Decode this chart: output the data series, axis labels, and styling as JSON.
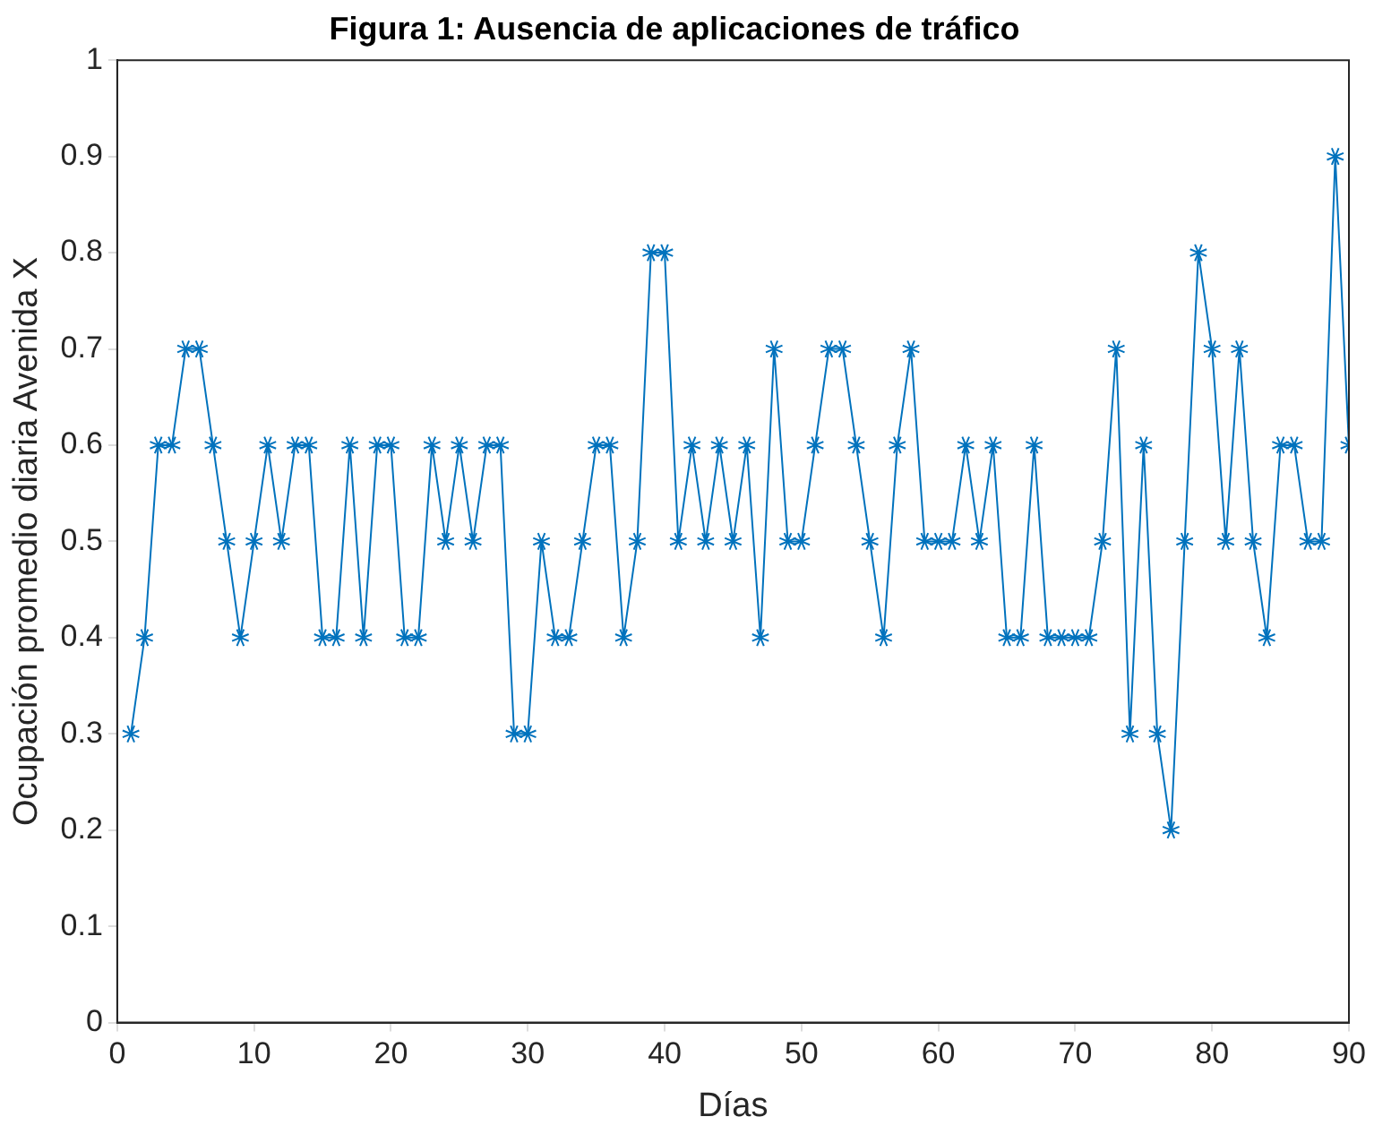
{
  "chart_data": {
    "type": "line",
    "title": "Figura 1: Ausencia de aplicaciones de tráfico",
    "xlabel": "Días",
    "ylabel": "Ocupación promedio diaria Avenida X",
    "x": [
      1,
      2,
      3,
      4,
      5,
      6,
      7,
      8,
      9,
      10,
      11,
      12,
      13,
      14,
      15,
      16,
      17,
      18,
      19,
      20,
      21,
      22,
      23,
      24,
      25,
      26,
      27,
      28,
      29,
      30,
      31,
      32,
      33,
      34,
      35,
      36,
      37,
      38,
      39,
      40,
      41,
      42,
      43,
      44,
      45,
      46,
      47,
      48,
      49,
      50,
      51,
      52,
      53,
      54,
      55,
      56,
      57,
      58,
      59,
      60,
      61,
      62,
      63,
      64,
      65,
      66,
      67,
      68,
      69,
      70,
      71,
      72,
      73,
      74,
      75,
      76,
      77,
      78,
      79,
      80,
      81,
      82,
      83,
      84,
      85,
      86,
      87,
      88,
      89,
      90
    ],
    "series": [
      {
        "color": "#0072bd",
        "values": [
          0.3,
          0.4,
          0.6,
          0.6,
          0.7,
          0.7,
          0.6,
          0.5,
          0.4,
          0.5,
          0.6,
          0.5,
          0.6,
          0.6,
          0.4,
          0.4,
          0.6,
          0.4,
          0.6,
          0.6,
          0.4,
          0.4,
          0.6,
          0.5,
          0.6,
          0.5,
          0.6,
          0.6,
          0.3,
          0.3,
          0.5,
          0.4,
          0.4,
          0.5,
          0.6,
          0.6,
          0.4,
          0.5,
          0.8,
          0.8,
          0.5,
          0.6,
          0.5,
          0.6,
          0.5,
          0.6,
          0.4,
          0.7,
          0.5,
          0.5,
          0.6,
          0.7,
          0.7,
          0.6,
          0.5,
          0.4,
          0.6,
          0.7,
          0.5,
          0.5,
          0.5,
          0.6,
          0.5,
          0.6,
          0.4,
          0.4,
          0.6,
          0.4,
          0.4,
          0.4,
          0.4,
          0.5,
          0.7,
          0.3,
          0.6,
          0.3,
          0.2,
          0.5,
          0.8,
          0.7,
          0.5,
          0.7,
          0.5,
          0.4,
          0.6,
          0.6,
          0.5,
          0.5,
          0.9,
          0.6
        ]
      }
    ],
    "xlim": [
      0,
      90
    ],
    "xticks": [
      0,
      10,
      20,
      30,
      40,
      50,
      60,
      70,
      80,
      90
    ],
    "ylim": [
      0,
      1
    ],
    "yticks": [
      0,
      0.1,
      0.2,
      0.3,
      0.4,
      0.5,
      0.6,
      0.7,
      0.8,
      0.9,
      1
    ],
    "grid": false,
    "legend": false,
    "marker": "cross",
    "line_style": "solid"
  }
}
